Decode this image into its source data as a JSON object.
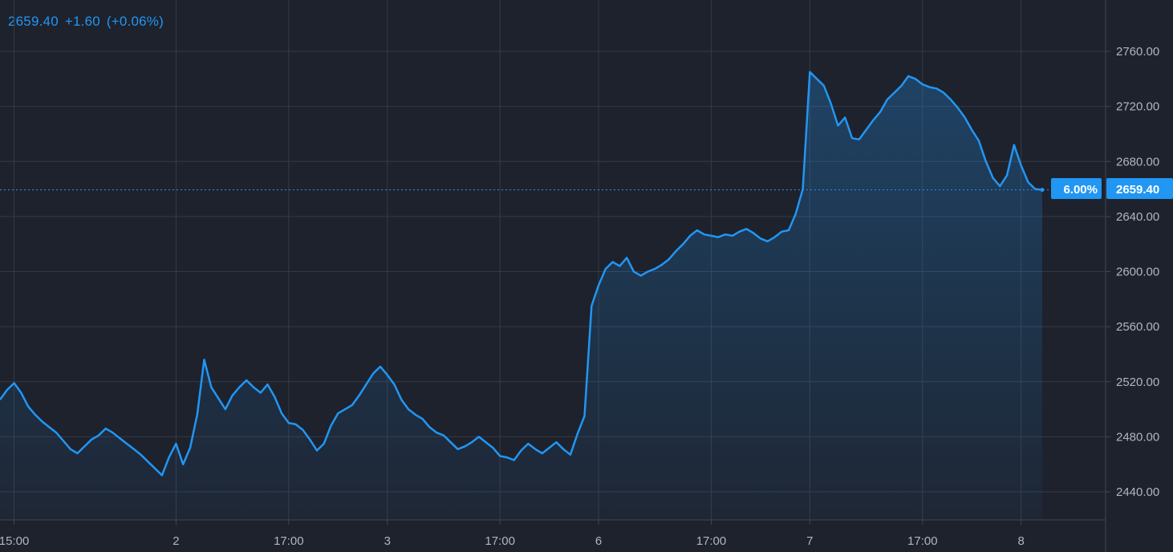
{
  "header": {
    "price": "2659.40",
    "change": "+1.60",
    "change_pct": "(+0.06%)"
  },
  "colors": {
    "background": "#1e222d",
    "line": "#2196f3",
    "grid": "#363a45",
    "axis_text": "#b2b5be",
    "label_bg": "#2196f3"
  },
  "price_label": "2659.40",
  "pct_label": "6.00%",
  "chart_data": {
    "type": "area",
    "title": "",
    "xlabel": "",
    "ylabel": "",
    "ylim": [
      2425,
      2795
    ],
    "grid": true,
    "y_axis_position": "right",
    "y_ticks": [
      "2440.00",
      "2480.00",
      "2520.00",
      "2560.00",
      "2600.00",
      "2640.00",
      "2680.00",
      "2720.00",
      "2760.00"
    ],
    "x_ticks": [
      {
        "label": "15:00",
        "index": 2
      },
      {
        "label": "2",
        "index": 25
      },
      {
        "label": "17:00",
        "index": 41
      },
      {
        "label": "3",
        "index": 55
      },
      {
        "label": "17:00",
        "index": 71
      },
      {
        "label": "6",
        "index": 85
      },
      {
        "label": "17:00",
        "index": 101
      },
      {
        "label": "7",
        "index": 115
      },
      {
        "label": "17:00",
        "index": 131
      },
      {
        "label": "8",
        "index": 145
      }
    ],
    "last_value": 2659.4,
    "series": [
      {
        "values": [
          2507,
          2514,
          2519,
          2512,
          2502,
          2496,
          2491,
          2487,
          2483,
          2477,
          2471,
          2468,
          2473,
          2478,
          2481,
          2486,
          2483,
          2479,
          2475,
          2471,
          2467,
          2462,
          2457,
          2452,
          2465,
          2475,
          2460,
          2472,
          2496,
          2536,
          2516,
          2508,
          2500,
          2510,
          2516,
          2521,
          2516,
          2512,
          2518,
          2509,
          2497,
          2490,
          2489,
          2485,
          2478,
          2470,
          2475,
          2488,
          2497,
          2500,
          2503,
          2510,
          2518,
          2526,
          2531,
          2525,
          2518,
          2507,
          2500,
          2496,
          2493,
          2487,
          2483,
          2481,
          2476,
          2471,
          2473,
          2476,
          2480,
          2476,
          2472,
          2466,
          2465,
          2463,
          2470,
          2475,
          2471,
          2468,
          2472,
          2476,
          2471,
          2467,
          2482,
          2495,
          2575,
          2590,
          2602,
          2607,
          2604,
          2610,
          2600,
          2597,
          2600,
          2602,
          2605,
          2609,
          2615,
          2620,
          2626,
          2630,
          2627,
          2626,
          2625,
          2627,
          2626,
          2629,
          2631,
          2628,
          2624,
          2622,
          2625,
          2629,
          2630,
          2642,
          2660,
          2745,
          2740,
          2735,
          2722,
          2706,
          2712,
          2697,
          2696,
          2703,
          2710,
          2716,
          2725,
          2730,
          2735,
          2742,
          2740,
          2736,
          2734,
          2733,
          2730,
          2725,
          2719,
          2712,
          2703,
          2695,
          2680,
          2668,
          2662,
          2670,
          2692,
          2677,
          2665,
          2660,
          2659.4
        ]
      }
    ]
  }
}
